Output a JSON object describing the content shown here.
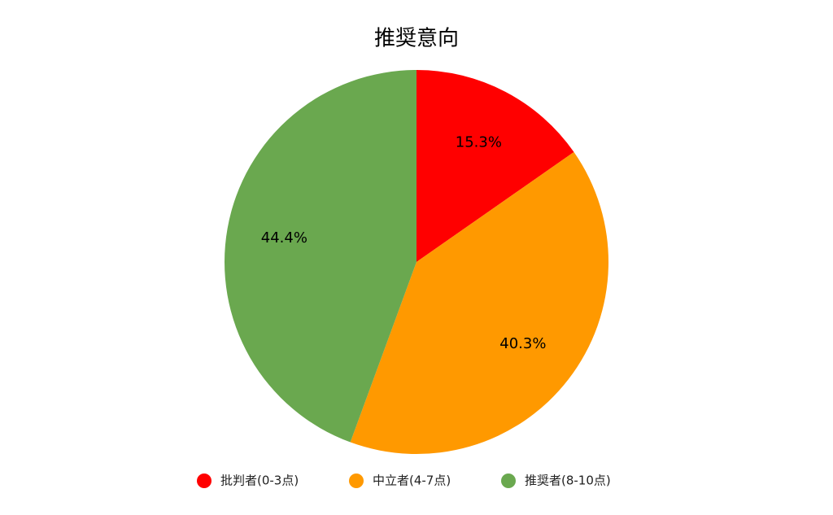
{
  "chart_data": {
    "type": "pie",
    "title": "推奨意向",
    "categories": [
      "批判者(0-3点)",
      "中立者(4-7点)",
      "推奨者(8-10点)"
    ],
    "values": [
      15.3,
      40.3,
      44.4
    ],
    "value_labels": [
      "15.3%",
      "40.3%",
      "44.4%"
    ],
    "colors": [
      "#ff0000",
      "#ff9900",
      "#6aa84f"
    ],
    "legend": "bottom"
  }
}
